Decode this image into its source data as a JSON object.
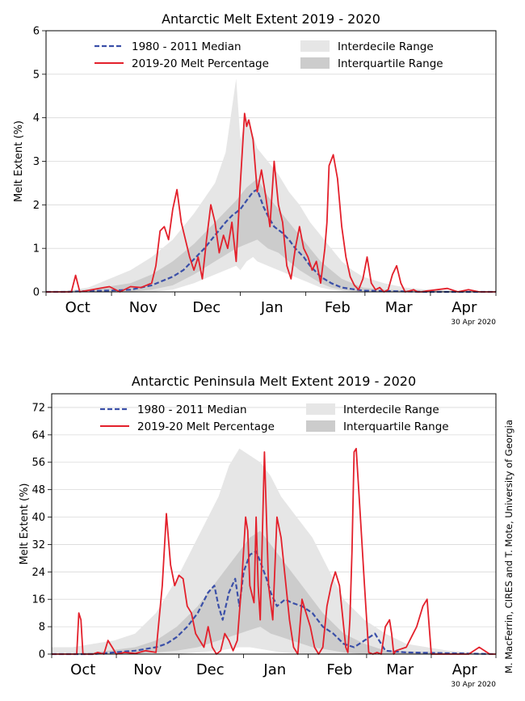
{
  "credit": "M. MacFerrin, CIRES and T. Mote, University of Georgia",
  "chart_data": [
    {
      "type": "line",
      "title": "Antarctic Melt Extent 2019 - 2020",
      "ylabel": "Melt Extent (%)",
      "ylim": [
        0,
        6
      ],
      "yticks": [
        "0",
        "1",
        "2",
        "3",
        "4",
        "5",
        "6"
      ],
      "xlim": [
        0,
        213
      ],
      "month_labels": [
        "Oct",
        "Nov",
        "Dec",
        "Jan",
        "Feb",
        "Mar",
        "Apr"
      ],
      "date_label": "30 Apr 2020",
      "grid": "horizontal",
      "legend": {
        "placement": "top",
        "entries": [
          "1980 - 2011 Median",
          "2019-20 Melt Percentage",
          "Interdecile Range",
          "Interquartile Range"
        ]
      },
      "colors": {
        "median": "#3a4fa8",
        "melt": "#e3202b",
        "interdecile": "#e6e6e6",
        "interquartile": "#cccccc"
      },
      "median": {
        "x": [
          0,
          10,
          20,
          30,
          40,
          50,
          55,
          60,
          65,
          70,
          75,
          80,
          85,
          88,
          92,
          95,
          98,
          100,
          103,
          105,
          108,
          112,
          115,
          118,
          122,
          125,
          130,
          135,
          140,
          150,
          160,
          170,
          180,
          190,
          213
        ],
        "y": [
          0,
          0,
          0.02,
          0.03,
          0.05,
          0.15,
          0.25,
          0.35,
          0.5,
          0.75,
          1.0,
          1.3,
          1.6,
          1.75,
          1.9,
          2.1,
          2.3,
          2.35,
          1.95,
          1.75,
          1.5,
          1.35,
          1.2,
          1.0,
          0.8,
          0.6,
          0.35,
          0.2,
          0.1,
          0.03,
          0.02,
          0.01,
          0.0,
          0.0,
          0.0
        ]
      },
      "interdecile": {
        "x": [
          0,
          10,
          20,
          30,
          40,
          50,
          60,
          70,
          80,
          85,
          90,
          92,
          95,
          98,
          100,
          105,
          110,
          115,
          120,
          125,
          130,
          135,
          140,
          145,
          150,
          160,
          170,
          180,
          190,
          200,
          213
        ],
        "lo": [
          0,
          0,
          0,
          0,
          0,
          0,
          0.05,
          0.2,
          0.4,
          0.5,
          0.6,
          0.5,
          0.7,
          0.8,
          0.7,
          0.6,
          0.5,
          0.4,
          0.3,
          0.2,
          0.1,
          0.05,
          0.02,
          0.01,
          0,
          0,
          0,
          0,
          0,
          0,
          0
        ],
        "hi": [
          0,
          0.03,
          0.1,
          0.3,
          0.5,
          0.8,
          1.2,
          1.8,
          2.5,
          3.2,
          4.9,
          3.5,
          4.0,
          3.6,
          3.3,
          3.0,
          2.7,
          2.3,
          2.0,
          1.6,
          1.3,
          1.0,
          0.7,
          0.5,
          0.35,
          0.2,
          0.1,
          0.05,
          0.03,
          0.02,
          0
        ]
      },
      "interquartile": {
        "x": [
          0,
          20,
          40,
          50,
          60,
          70,
          80,
          90,
          95,
          100,
          105,
          110,
          115,
          120,
          125,
          130,
          135,
          140,
          150,
          160,
          213
        ],
        "lo": [
          0,
          0,
          0,
          0.05,
          0.15,
          0.4,
          0.7,
          1.0,
          1.1,
          1.2,
          1.0,
          0.9,
          0.7,
          0.5,
          0.35,
          0.2,
          0.1,
          0.05,
          0.0,
          0.0,
          0
        ],
        "hi": [
          0,
          0.05,
          0.2,
          0.4,
          0.7,
          1.1,
          1.6,
          2.1,
          2.4,
          2.6,
          2.2,
          1.9,
          1.6,
          1.3,
          1.0,
          0.7,
          0.5,
          0.3,
          0.1,
          0.05,
          0
        ]
      },
      "melt": {
        "x": [
          0,
          12,
          14,
          16,
          25,
          30,
          35,
          40,
          45,
          50,
          52,
          54,
          56,
          58,
          60,
          62,
          64,
          66,
          68,
          70,
          72,
          74,
          76,
          78,
          80,
          82,
          84,
          86,
          88,
          90,
          92,
          94,
          95,
          96,
          98,
          100,
          102,
          104,
          106,
          108,
          110,
          112,
          114,
          116,
          118,
          120,
          122,
          124,
          126,
          128,
          130,
          132,
          133,
          134,
          136,
          138,
          140,
          142,
          144,
          146,
          148,
          150,
          152,
          154,
          156,
          158,
          160,
          162,
          164,
          166,
          168,
          170,
          172,
          174,
          176,
          178,
          180,
          185,
          190,
          195,
          200,
          205,
          210,
          213
        ],
        "y": [
          0,
          0,
          0.38,
          0,
          0.08,
          0.12,
          0.0,
          0.12,
          0.1,
          0.2,
          0.6,
          1.4,
          1.5,
          1.2,
          1.9,
          2.35,
          1.6,
          1.2,
          0.8,
          0.5,
          0.8,
          0.3,
          1.2,
          2.0,
          1.6,
          0.9,
          1.3,
          1.0,
          1.6,
          0.7,
          2.5,
          4.1,
          3.8,
          3.95,
          3.5,
          2.3,
          2.8,
          2.2,
          1.5,
          3.0,
          2.0,
          1.6,
          0.6,
          0.3,
          1.0,
          1.5,
          1.0,
          0.8,
          0.5,
          0.7,
          0.2,
          1.0,
          1.6,
          2.9,
          3.15,
          2.6,
          1.5,
          0.8,
          0.35,
          0.15,
          0.05,
          0.3,
          0.8,
          0.2,
          0.05,
          0.1,
          0.0,
          0.05,
          0.4,
          0.6,
          0.2,
          0.0,
          0.02,
          0.05,
          0.0,
          0.0,
          0.02,
          0.05,
          0.08,
          0.0,
          0.05,
          0.0,
          0.0,
          0.0
        ]
      }
    },
    {
      "type": "line",
      "title": "Antarctic Peninsula Melt Extent 2019 - 2020",
      "ylabel": "Melt Extent (%)",
      "ylim": [
        0,
        76
      ],
      "yticks": [
        "0",
        "8",
        "16",
        "24",
        "32",
        "40",
        "48",
        "56",
        "64",
        "72"
      ],
      "xlim": [
        0,
        213
      ],
      "month_labels": [
        "Oct",
        "Nov",
        "Dec",
        "Jan",
        "Feb",
        "Mar",
        "Apr"
      ],
      "date_label": "30 Apr 2020",
      "grid": "horizontal",
      "legend": {
        "placement": "top",
        "entries": [
          "1980 - 2011 Median",
          "2019-20 Melt Percentage",
          "Interdecile Range",
          "Interquartile Range"
        ]
      },
      "colors": {
        "median": "#3a4fa8",
        "melt": "#e3202b",
        "interdecile": "#e6e6e6",
        "interquartile": "#cccccc"
      },
      "median": {
        "x": [
          0,
          20,
          30,
          40,
          45,
          50,
          55,
          60,
          65,
          70,
          75,
          78,
          80,
          82,
          85,
          88,
          90,
          92,
          95,
          98,
          100,
          103,
          105,
          108,
          112,
          115,
          120,
          125,
          130,
          135,
          140,
          145,
          150,
          155,
          160,
          170,
          213
        ],
        "y": [
          0,
          0,
          0.5,
          1.0,
          1.5,
          2.0,
          3.0,
          5.0,
          8.0,
          12.0,
          18.0,
          20.0,
          14.0,
          10.0,
          18.0,
          22.0,
          14.0,
          24.0,
          29.0,
          30.0,
          27.0,
          22.0,
          18.0,
          14.0,
          16.0,
          15.0,
          14.0,
          12.0,
          8.0,
          6.0,
          3.0,
          2.0,
          4.0,
          6.0,
          1.0,
          0.5,
          0
        ]
      },
      "interdecile": {
        "x": [
          0,
          10,
          20,
          30,
          40,
          50,
          60,
          70,
          80,
          85,
          90,
          95,
          100,
          105,
          110,
          115,
          120,
          125,
          130,
          135,
          140,
          150,
          160,
          170,
          180,
          190,
          213
        ],
        "lo": [
          0,
          0,
          0,
          0,
          0,
          0,
          0,
          0.5,
          1.0,
          1.5,
          2.0,
          2.0,
          1.5,
          1.0,
          0.5,
          0.3,
          0.2,
          0.1,
          0,
          0,
          0,
          0,
          0,
          0,
          0,
          0,
          0
        ],
        "hi": [
          2,
          2,
          3,
          4,
          6,
          12,
          22,
          34,
          46,
          55,
          60,
          58,
          56,
          52,
          46,
          42,
          38,
          34,
          28,
          22,
          16,
          10,
          6,
          3,
          2,
          1,
          0
        ]
      },
      "interquartile": {
        "x": [
          0,
          20,
          40,
          50,
          60,
          70,
          80,
          90,
          95,
          100,
          105,
          110,
          115,
          120,
          125,
          130,
          135,
          140,
          150,
          160,
          213
        ],
        "lo": [
          0,
          0,
          0,
          0.5,
          1,
          2,
          4,
          6,
          7,
          8,
          6,
          5,
          4,
          3,
          2,
          1.5,
          1,
          0.5,
          0,
          0,
          0
        ],
        "hi": [
          0,
          0.5,
          2,
          4,
          8,
          14,
          22,
          30,
          34,
          36,
          32,
          28,
          24,
          20,
          16,
          12,
          9,
          6,
          3,
          1,
          0
        ]
      },
      "melt": {
        "x": [
          0,
          12,
          13,
          14,
          15,
          20,
          22,
          25,
          27,
          29,
          31,
          35,
          40,
          45,
          50,
          53,
          55,
          57,
          59,
          61,
          63,
          65,
          67,
          69,
          71,
          73,
          75,
          77,
          79,
          81,
          83,
          85,
          87,
          89,
          91,
          93,
          94,
          95,
          97,
          98,
          99,
          100,
          102,
          104,
          106,
          108,
          110,
          112,
          114,
          116,
          118,
          120,
          122,
          124,
          126,
          128,
          130,
          132,
          134,
          136,
          138,
          140,
          141,
          142,
          143,
          144,
          145,
          146,
          148,
          150,
          152,
          154,
          156,
          158,
          160,
          162,
          163,
          164,
          165,
          170,
          175,
          178,
          180,
          182,
          185,
          190,
          200,
          205,
          210,
          213
        ],
        "y": [
          0,
          0,
          12,
          10,
          0,
          0,
          0.5,
          0,
          4,
          2,
          0,
          0.5,
          0.2,
          1,
          0.5,
          20,
          41,
          26,
          20,
          23,
          22,
          14,
          12,
          6,
          4,
          2,
          8,
          2,
          0,
          1,
          6,
          4,
          1,
          4,
          20,
          40,
          36,
          20,
          15,
          40,
          20,
          10,
          59,
          20,
          10,
          40,
          34,
          22,
          10,
          2,
          0,
          16,
          12,
          8,
          2,
          0,
          2,
          14,
          20,
          24,
          20,
          8,
          2,
          0.5,
          10,
          30,
          59,
          60,
          40,
          20,
          0.5,
          0,
          0.5,
          0,
          8,
          10,
          6,
          0,
          1,
          2,
          8,
          14,
          16,
          0,
          0,
          0,
          0,
          2,
          0,
          0
        ]
      }
    }
  ]
}
